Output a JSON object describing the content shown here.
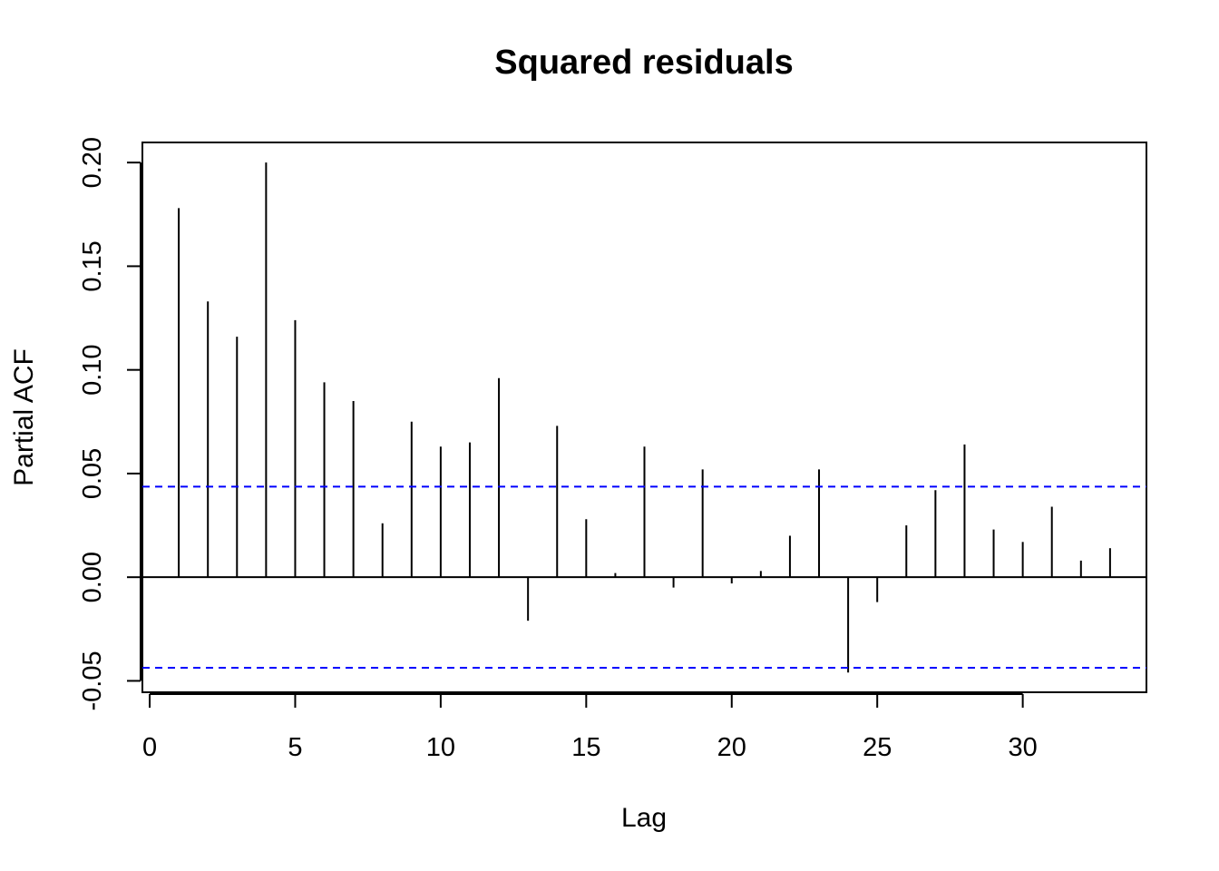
{
  "chart_data": {
    "type": "bar",
    "title": "Squared residuals",
    "xlabel": "Lag",
    "ylabel": "Partial ACF",
    "xlim": [
      -0.25,
      34.25
    ],
    "ylim": [
      -0.0555,
      0.2097
    ],
    "x_ticks": [
      0,
      5,
      10,
      15,
      20,
      25,
      30
    ],
    "x_tick_labels": [
      "0",
      "5",
      "10",
      "15",
      "20",
      "25",
      "30"
    ],
    "y_ticks": [
      -0.05,
      0.0,
      0.05,
      0.1,
      0.15,
      0.2
    ],
    "y_tick_labels": [
      "-0.05",
      "0.00",
      "0.05",
      "0.10",
      "0.15",
      "0.20"
    ],
    "lags": [
      1,
      2,
      3,
      4,
      5,
      6,
      7,
      8,
      9,
      10,
      11,
      12,
      13,
      14,
      15,
      16,
      17,
      18,
      19,
      20,
      21,
      22,
      23,
      24,
      25,
      26,
      27,
      28,
      29,
      30,
      31,
      32,
      33
    ],
    "values": [
      0.178,
      0.133,
      0.116,
      0.2,
      0.124,
      0.094,
      0.085,
      0.026,
      0.075,
      0.063,
      0.065,
      0.096,
      -0.021,
      0.073,
      0.028,
      0.002,
      0.063,
      -0.005,
      0.052,
      -0.003,
      0.003,
      0.02,
      0.052,
      -0.046,
      -0.012,
      0.025,
      0.042,
      0.064,
      0.023,
      0.017,
      0.034,
      0.008,
      0.014
    ],
    "confidence_bound": 0.0437,
    "grid": false,
    "colors": {
      "bars": "#000000",
      "confidence_lines": "#0000ff",
      "zero_line": "#000000",
      "frame": "#000000"
    }
  }
}
